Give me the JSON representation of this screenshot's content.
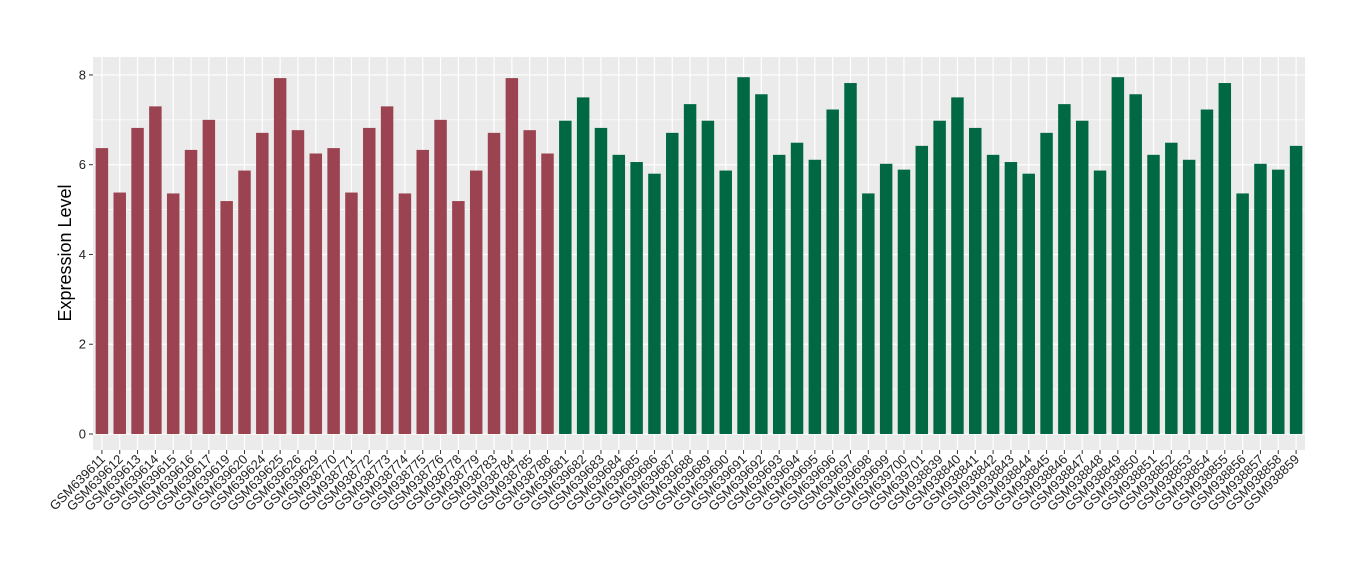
{
  "chart_data": {
    "type": "bar",
    "title": "",
    "xlabel": "",
    "ylabel": "Expression Level",
    "ylim": [
      0,
      8.4
    ],
    "yticks": [
      0,
      2,
      4,
      6,
      8
    ],
    "grid": true,
    "legend": "none",
    "panel_background": "#EBEBEB",
    "categories": [
      "GSM639611",
      "GSM639612",
      "GSM639613",
      "GSM639614",
      "GSM639615",
      "GSM639616",
      "GSM639617",
      "GSM639619",
      "GSM639620",
      "GSM639624",
      "GSM639625",
      "GSM639626",
      "GSM639629",
      "GSM938770",
      "GSM938771",
      "GSM938772",
      "GSM938773",
      "GSM938774",
      "GSM938775",
      "GSM938776",
      "GSM938778",
      "GSM938779",
      "GSM938783",
      "GSM938784",
      "GSM938785",
      "GSM938788",
      "GSM639681",
      "GSM639682",
      "GSM639683",
      "GSM639684",
      "GSM639685",
      "GSM639686",
      "GSM639687",
      "GSM639688",
      "GSM639689",
      "GSM639690",
      "GSM639691",
      "GSM639692",
      "GSM639693",
      "GSM639694",
      "GSM639695",
      "GSM639696",
      "GSM639697",
      "GSM639698",
      "GSM639699",
      "GSM639700",
      "GSM639701",
      "GSM938839",
      "GSM938840",
      "GSM938841",
      "GSM938842",
      "GSM938843",
      "GSM938844",
      "GSM938845",
      "GSM938846",
      "GSM938847",
      "GSM938848",
      "GSM938849",
      "GSM938850",
      "GSM938851",
      "GSM938852",
      "GSM938853",
      "GSM938854",
      "GSM938855",
      "GSM938856",
      "GSM938857",
      "GSM938858",
      "GSM938859"
    ],
    "values": [
      6.37,
      5.38,
      6.82,
      7.3,
      5.36,
      6.33,
      7.0,
      5.19,
      5.87,
      6.71,
      7.93,
      6.77,
      6.25,
      6.37,
      5.38,
      6.82,
      7.3,
      5.36,
      6.33,
      7.0,
      5.19,
      5.87,
      6.71,
      7.93,
      6.77,
      6.25,
      6.98,
      7.5,
      6.82,
      6.22,
      6.06,
      5.8,
      6.71,
      7.35,
      6.98,
      5.87,
      7.95,
      7.57,
      6.22,
      6.49,
      6.11,
      7.23,
      7.82,
      5.36,
      6.02,
      5.89,
      6.42,
      6.98,
      7.5,
      6.82,
      6.22,
      6.06,
      5.8,
      6.71,
      7.35,
      6.98,
      5.87,
      7.95,
      7.57,
      6.22,
      6.49,
      6.11,
      7.23,
      7.82,
      5.36,
      6.02,
      5.89,
      6.42
    ],
    "bar_colors": [
      "#9B4350",
      "#9B4350",
      "#9B4350",
      "#9B4350",
      "#9B4350",
      "#9B4350",
      "#9B4350",
      "#9B4350",
      "#9B4350",
      "#9B4350",
      "#9B4350",
      "#9B4350",
      "#9B4350",
      "#9B4350",
      "#9B4350",
      "#9B4350",
      "#9B4350",
      "#9B4350",
      "#9B4350",
      "#9B4350",
      "#9B4350",
      "#9B4350",
      "#9B4350",
      "#9B4350",
      "#9B4350",
      "#9B4350",
      "#006943",
      "#006943",
      "#006943",
      "#006943",
      "#006943",
      "#006943",
      "#006943",
      "#006943",
      "#006943",
      "#006943",
      "#006943",
      "#006943",
      "#006943",
      "#006943",
      "#006943",
      "#006943",
      "#006943",
      "#006943",
      "#006943",
      "#006943",
      "#006943",
      "#006943",
      "#006943",
      "#006943",
      "#006943",
      "#006943",
      "#006943",
      "#006943",
      "#006943",
      "#006943",
      "#006943",
      "#006943",
      "#006943",
      "#006943",
      "#006943",
      "#006943",
      "#006943",
      "#006943",
      "#006943",
      "#006943",
      "#006943",
      "#006943"
    ]
  }
}
